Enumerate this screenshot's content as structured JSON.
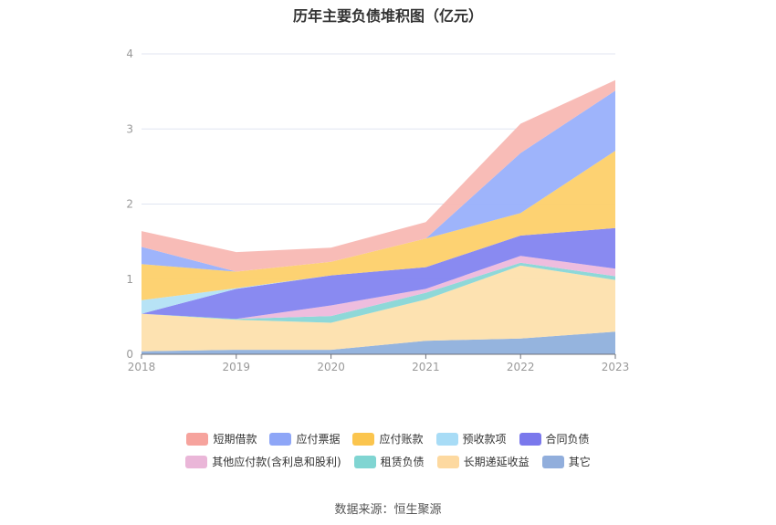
{
  "title": "历年主要负债堆积图（亿元）",
  "source": "数据来源：恒生聚源",
  "chart_data": {
    "type": "area",
    "stacked": true,
    "title": "历年主要负债堆积图（亿元）",
    "xlabel": "",
    "ylabel": "",
    "x": [
      "2018",
      "2019",
      "2020",
      "2021",
      "2022",
      "2023"
    ],
    "ylim": [
      0,
      4
    ],
    "yticks": [
      "0",
      "1",
      "2",
      "3",
      "4"
    ],
    "grid": true,
    "legend_position": "bottom",
    "series": [
      {
        "name": "其它",
        "color": "#8fb0dc",
        "values": [
          0.04,
          0.06,
          0.06,
          0.18,
          0.21,
          0.3
        ]
      },
      {
        "name": "长期递延收益",
        "color": "#fde0ad",
        "values": [
          0.5,
          0.4,
          0.36,
          0.55,
          0.97,
          0.69
        ]
      },
      {
        "name": "租赁负债",
        "color": "#88d6d6",
        "values": [
          0.0,
          0.01,
          0.09,
          0.09,
          0.04,
          0.05
        ]
      },
      {
        "name": "其他应付款(含利息和股利)",
        "color": "#edb9dc",
        "values": [
          0.0,
          0.0,
          0.14,
          0.05,
          0.09,
          0.1
        ]
      },
      {
        "name": "合同负债",
        "color": "#8384f0",
        "values": [
          0.0,
          0.4,
          0.4,
          0.29,
          0.27,
          0.54
        ]
      },
      {
        "name": "预收款项",
        "color": "#b3e1f5",
        "values": [
          0.18,
          0.01,
          0.0,
          0.0,
          0.0,
          0.0
        ]
      },
      {
        "name": "应付账款",
        "color": "#fdd06a",
        "values": [
          0.48,
          0.22,
          0.18,
          0.38,
          0.3,
          1.03
        ]
      },
      {
        "name": "应付票据",
        "color": "#99b0fb",
        "values": [
          0.23,
          0.0,
          0.0,
          0.0,
          0.8,
          0.8
        ]
      },
      {
        "name": "短期借款",
        "color": "#f8b8b3",
        "values": [
          0.21,
          0.26,
          0.19,
          0.22,
          0.39,
          0.14
        ]
      }
    ]
  },
  "legend": {
    "row1": [
      {
        "label": "短期借款",
        "color": "#f6a39d"
      },
      {
        "label": "应付票据",
        "color": "#8ea6f7"
      },
      {
        "label": "应付账款",
        "color": "#fbc54e"
      },
      {
        "label": "预收款项",
        "color": "#a8dcf6"
      },
      {
        "label": "合同负债",
        "color": "#7a78ec"
      }
    ],
    "row2": [
      {
        "label": "其他应付款(含利息和股利)",
        "color": "#eab6d8"
      },
      {
        "label": "租赁负债",
        "color": "#80d5d2"
      },
      {
        "label": "长期递延收益",
        "color": "#fdd9a0"
      },
      {
        "label": "其它",
        "color": "#91aedc"
      }
    ]
  }
}
